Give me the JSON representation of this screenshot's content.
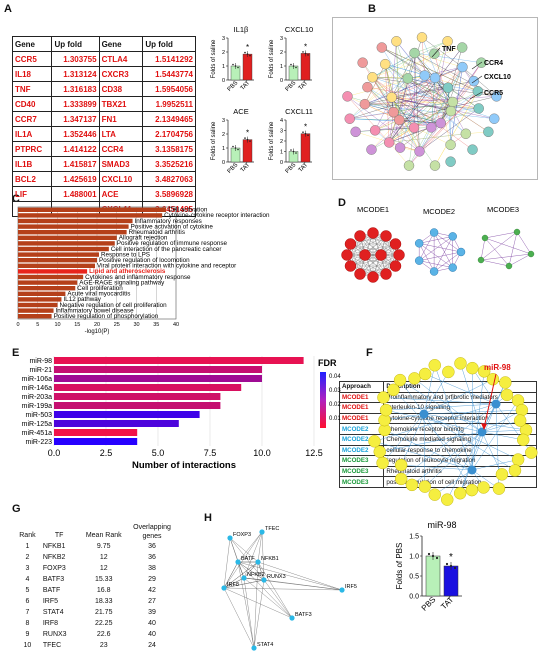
{
  "panels": {
    "A": "A",
    "B": "B",
    "C": "C",
    "D": "D",
    "E": "E",
    "F": "F",
    "G": "G",
    "H": "H"
  },
  "tableA": {
    "headers": [
      "Gene",
      "Up fold",
      "Gene",
      "Up fold"
    ],
    "rows": [
      [
        "CCR5",
        "1.303755",
        "CTLA4",
        "1.5141292"
      ],
      [
        "IL18",
        "1.313124",
        "CXCR3",
        "1.5443774"
      ],
      [
        "TNF",
        "1.316183",
        "CD38",
        "1.5954056"
      ],
      [
        "CD40",
        "1.333899",
        "TBX21",
        "1.9952511"
      ],
      [
        "CCR7",
        "1.347137",
        "FN1",
        "2.1349465"
      ],
      [
        "IL1A",
        "1.352446",
        "LTA",
        "2.1704756"
      ],
      [
        "PTPRC",
        "1.414122",
        "CCR4",
        "3.1358175"
      ],
      [
        "IL1B",
        "1.415817",
        "SMAD3",
        "3.3525216"
      ],
      [
        "BCL2",
        "1.425619",
        "CXCL10",
        "3.4827063"
      ],
      [
        "LIF",
        "1.488001",
        "ACE",
        "3.5896928"
      ],
      [
        "",
        "",
        "CXCL11",
        "3.6451495"
      ]
    ]
  },
  "minibars": [
    {
      "title": "IL1β",
      "ylabel": "Folds of saline",
      "categories": [
        "PBS",
        "TAT"
      ],
      "values": [
        1.0,
        1.85
      ],
      "ylim": [
        0,
        3
      ],
      "yticks": [
        "0",
        "1",
        "2",
        "3"
      ],
      "star": "*"
    },
    {
      "title": "CXCL10",
      "ylabel": "Folds of saline",
      "categories": [
        "PBS",
        "TAT"
      ],
      "values": [
        1.0,
        1.9
      ],
      "ylim": [
        0,
        3
      ],
      "yticks": [
        "0",
        "1",
        "2",
        "3"
      ],
      "star": "*"
    },
    {
      "title": "ACE",
      "ylabel": "Folds of saline",
      "categories": [
        "PBS",
        "TAT"
      ],
      "values": [
        1.0,
        1.6
      ],
      "ylim": [
        0,
        3
      ],
      "yticks": [
        "0",
        "1",
        "2",
        "3"
      ],
      "star": "*"
    },
    {
      "title": "CXCL11",
      "ylabel": "Folds of saline",
      "categories": [
        "PBS",
        "TAT"
      ],
      "values": [
        1.0,
        2.7
      ],
      "ylim": [
        0,
        4
      ],
      "yticks": [
        "0",
        "1",
        "2",
        "3",
        "4"
      ],
      "star": "*"
    }
  ],
  "networkB": {
    "labels": [
      "TNF",
      "CCR4",
      "CXCL10",
      "CCR5"
    ]
  },
  "chart_data": [
    {
      "type": "bar",
      "orientation": "horizontal",
      "xlabel": "-log10(P)",
      "xlim": [
        0,
        40
      ],
      "xticks": [
        "0",
        "5",
        "10",
        "15",
        "20",
        "25",
        "30",
        "35",
        "40"
      ],
      "categories": [
        "Cell activation",
        "Cytokine-cytokine receptor interaction",
        "Inflammatory responses",
        "Positive activation of cytokine",
        "Rheumatoid arthritis",
        "Allograft rejection",
        "Positive regulation of immune response",
        "Cell interaction of the pancreatic cancer",
        "Response to LPS",
        "Positive regulation of locomotion",
        "Viral protein interaction with cytokine and receptor",
        "Lipid and atherosclerosis",
        "Cytokines and inflammatory response",
        "AGE-RAGE signaling pathway",
        "Cell proliferation",
        "Acute viral myocarditis",
        "IL12 pathway",
        "Negative regulation of cell proliferation",
        "Inflammatory bowel disease",
        "Positive regulation of phosphorylation"
      ],
      "values": [
        37.5,
        36.5,
        29,
        28,
        27.5,
        25,
        24.5,
        23,
        20.5,
        20,
        19.5,
        17.5,
        16.5,
        15,
        14.5,
        12,
        11,
        10,
        9,
        8.5
      ],
      "highlight_index": 11,
      "bar_color": "#b5401a",
      "highlight_color": "#e8241c"
    },
    {
      "type": "bar",
      "orientation": "horizontal",
      "xlabel": "Number of interactions",
      "xlim": [
        0,
        12.5
      ],
      "xticks": [
        "0.0",
        "2.5",
        "5.0",
        "7.5",
        "10.0",
        "12.5"
      ],
      "categories": [
        "miR-98",
        "miR-21",
        "miR-106a",
        "miR-146a",
        "miR-203a",
        "miR-199a",
        "miR-503",
        "miR-125a",
        "miR-451a",
        "miR-223"
      ],
      "values": [
        12,
        10,
        10,
        9,
        8,
        8,
        7,
        6,
        4,
        4
      ],
      "fdr": [
        0.005,
        0.012,
        0.02,
        0.008,
        0.01,
        0.012,
        0.04,
        0.037,
        0.003,
        0.045
      ],
      "legend_title": "FDR",
      "legend_ticks": [
        "0.04",
        "0.03",
        "0.02",
        "0.01"
      ],
      "legend_placement": "right"
    },
    {
      "type": "bar",
      "title": "miR-98",
      "ylabel": "Folds of PBS",
      "categories": [
        "PBS",
        "TAT"
      ],
      "values": [
        1.0,
        0.75
      ],
      "ylim": [
        0.0,
        1.5
      ],
      "yticks": [
        "0.0",
        "0.5",
        "1.0",
        "1.5"
      ],
      "colors": [
        "#b8f0b8",
        "#1a10e0"
      ],
      "star": "*"
    }
  ],
  "mcode": {
    "titles": [
      "MCODE1",
      "MCODE2",
      "MCODE3"
    ],
    "table_headers": [
      "Approach",
      "Description"
    ],
    "rows": [
      {
        "approach": "MCODE1",
        "description": "Proinflammatory and prfibrotic mediators",
        "color": "#e01010"
      },
      {
        "approach": "MCODE1",
        "description": "Interleukin-10 signaling",
        "color": "#e01010"
      },
      {
        "approach": "MCODE1",
        "description": "cytokine-cytokine receptor interaction",
        "color": "#e01010"
      },
      {
        "approach": "MCODE2",
        "description": "Chemokine receptor binindg",
        "color": "#1aa3d9"
      },
      {
        "approach": "MCODE2",
        "description": "Chemokine mediated signaling",
        "color": "#1aa3d9"
      },
      {
        "approach": "MCODE2",
        "description": "cellular response to chemokine",
        "color": "#1aa3d9"
      },
      {
        "approach": "MCODE3",
        "description": "regulation of leukocyte migration",
        "color": "#1a9a3a"
      },
      {
        "approach": "MCODE3",
        "description": "Rheumatoid arthritis",
        "color": "#1a9a3a"
      },
      {
        "approach": "MCODE3",
        "description": "positive regulation of cell migration",
        "color": "#1a9a3a"
      }
    ]
  },
  "networkF": {
    "highlight": "miR-98"
  },
  "tableG": {
    "headers": [
      "Rank",
      "TF",
      "Mean Rank",
      "Overlapping genes"
    ],
    "rows": [
      [
        "1",
        "NFKB1",
        "9.75",
        "36"
      ],
      [
        "2",
        "NFKB2",
        "12",
        "36"
      ],
      [
        "3",
        "FOXP3",
        "12",
        "38"
      ],
      [
        "4",
        "BATF3",
        "15.33",
        "29"
      ],
      [
        "5",
        "BATF",
        "16.8",
        "42"
      ],
      [
        "6",
        "IRF5",
        "18.33",
        "27"
      ],
      [
        "7",
        "STAT4",
        "21.75",
        "39"
      ],
      [
        "8",
        "IRF8",
        "22.25",
        "40"
      ],
      [
        "9",
        "RUNX3",
        "22.6",
        "40"
      ],
      [
        "10",
        "TFEC",
        "23",
        "24"
      ]
    ]
  },
  "networkH": {
    "nodes": [
      "FOXP3",
      "TFEC",
      "BATF",
      "NFKB1",
      "NFKB2",
      "RUNX3",
      "IRF5",
      "IRF8",
      "BATF3",
      "STAT4"
    ]
  }
}
